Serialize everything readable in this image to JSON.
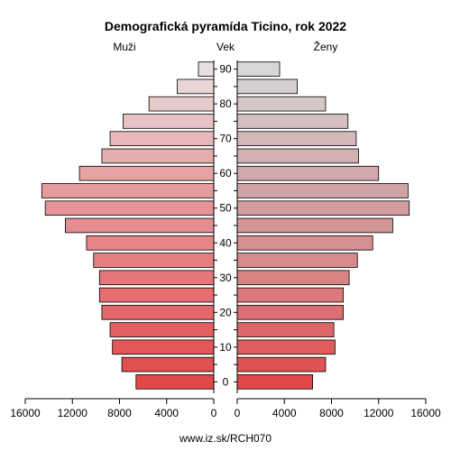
{
  "chart_data": {
    "type": "bar",
    "orientation": "horizontal",
    "subtype": "population-pyramid",
    "title": "Demografická pyramída Ticino, rok 2022",
    "left_label": "Muži",
    "center_label": "Vek",
    "right_label": "Ženy",
    "footer": "www.iz.sk/RCH070",
    "age_groups": [
      "0",
      "5",
      "10",
      "15",
      "20",
      "25",
      "30",
      "35",
      "40",
      "45",
      "50",
      "55",
      "60",
      "65",
      "70",
      "75",
      "80",
      "85",
      "90"
    ],
    "age_tick_labels": [
      "0",
      "10",
      "20",
      "30",
      "40",
      "50",
      "60",
      "70",
      "80",
      "90"
    ],
    "series": [
      {
        "name": "Muži",
        "values": [
          6600,
          7800,
          8600,
          8800,
          9500,
          9700,
          9700,
          10200,
          10800,
          12600,
          14300,
          14600,
          11400,
          9500,
          8800,
          7700,
          5500,
          3100,
          1300
        ]
      },
      {
        "name": "Ženy",
        "values": [
          6400,
          7500,
          8300,
          8200,
          9000,
          9000,
          9500,
          10200,
          11500,
          13200,
          14600,
          14500,
          12000,
          10300,
          10100,
          9400,
          7500,
          5100,
          3600
        ]
      }
    ],
    "xlim": [
      0,
      16000
    ],
    "x_ticks": [
      0,
      4000,
      8000,
      12000,
      16000
    ],
    "x_tick_labels_left": [
      "16000",
      "12000",
      "8000",
      "4000",
      "0"
    ],
    "x_tick_labels_right": [
      "0",
      "4000",
      "8000",
      "12000",
      "16000"
    ],
    "colors": {
      "male": [
        "#e24848",
        "#e57679",
        "#e6a3a5",
        "#e8dfe0"
      ],
      "female": [
        "#e24848",
        "#d98385",
        "#d1a9ab",
        "#d7d7d7"
      ],
      "outline": "#000000"
    }
  }
}
